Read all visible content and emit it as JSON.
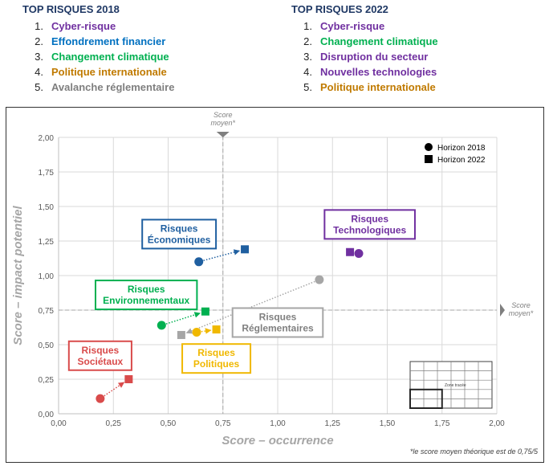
{
  "lists": [
    {
      "title": "TOP RISQUES 2018",
      "items": [
        {
          "num": "1.",
          "label": "Cyber-risque",
          "color": "#7030a0"
        },
        {
          "num": "2.",
          "label": "Effondrement financier",
          "color": "#0070c0"
        },
        {
          "num": "3.",
          "label": "Changement climatique",
          "color": "#00b050"
        },
        {
          "num": "4.",
          "label": "Politique internationale",
          "color": "#c07a00"
        },
        {
          "num": "5.",
          "label": "Avalanche réglementaire",
          "color": "#7f7f7f"
        }
      ]
    },
    {
      "title": "TOP RISQUES 2022",
      "items": [
        {
          "num": "1.",
          "label": "Cyber-risque",
          "color": "#7030a0"
        },
        {
          "num": "2.",
          "label": "Changement climatique",
          "color": "#00b050"
        },
        {
          "num": "3.",
          "label": "Disruption du secteur",
          "color": "#7030a0"
        },
        {
          "num": "4.",
          "label": "Nouvelles technologies",
          "color": "#7030a0"
        },
        {
          "num": "5.",
          "label": "Politique internationale",
          "color": "#c07a00"
        }
      ]
    }
  ],
  "chart_data": {
    "type": "scatter",
    "xlabel": "Score – occurrence",
    "ylabel": "Score – impact potentiel",
    "xlim": [
      0,
      2
    ],
    "ylim": [
      0,
      2
    ],
    "xticks": [
      "0,00",
      "0,25",
      "0,50",
      "0,75",
      "1,00",
      "1,25",
      "1,50",
      "1,75",
      "2,00"
    ],
    "yticks": [
      "0,00",
      "0,25",
      "0,50",
      "0,75",
      "1,00",
      "1,25",
      "1,50",
      "1,75",
      "2,00"
    ],
    "grid": true,
    "legend_position": "top-right",
    "legend": [
      {
        "marker": "circle",
        "label": "Horizon 2018"
      },
      {
        "marker": "square",
        "label": "Horizon 2022"
      }
    ],
    "reference_lines": [
      {
        "axis": "x",
        "value": 0.75,
        "label": "Score\nmoyen*"
      },
      {
        "axis": "y",
        "value": 0.75,
        "label": "Score\nmoyen*"
      }
    ],
    "footnote": "*le score moyen théorique est de 0,75/5",
    "inset_label": "Zone tracée",
    "series": [
      {
        "label": "Risques\nÉconomiques",
        "color": "#1f5fa0",
        "x2018": 0.64,
        "y2018": 1.1,
        "x2022": 0.85,
        "y2022": 1.19,
        "label_x": 0.55,
        "label_y": 1.3
      },
      {
        "label": "Risques\nTechnologiques",
        "color": "#7030a0",
        "x2018": 1.37,
        "y2018": 1.16,
        "x2022": 1.33,
        "y2022": 1.17,
        "label_x": 1.42,
        "label_y": 1.37
      },
      {
        "label": "Risques\nEnvironnementaux",
        "color": "#00b050",
        "x2018": 0.47,
        "y2018": 0.64,
        "x2022": 0.67,
        "y2022": 0.74,
        "label_x": 0.4,
        "label_y": 0.86
      },
      {
        "label": "Risques\nRéglementaires",
        "color": "#a6a6a6",
        "x2018": 1.19,
        "y2018": 0.97,
        "x2022": 0.56,
        "y2022": 0.57,
        "label_x": 1.0,
        "label_y": 0.66
      },
      {
        "label": "Risques\nPolitiques",
        "color": "#f0b800",
        "x2018": 0.63,
        "y2018": 0.59,
        "x2022": 0.72,
        "y2022": 0.61,
        "label_x": 0.72,
        "label_y": 0.4
      },
      {
        "label": "Risques\nSociétaux",
        "color": "#d94b4b",
        "x2018": 0.19,
        "y2018": 0.11,
        "x2022": 0.32,
        "y2022": 0.25,
        "label_x": 0.19,
        "label_y": 0.42
      }
    ]
  }
}
